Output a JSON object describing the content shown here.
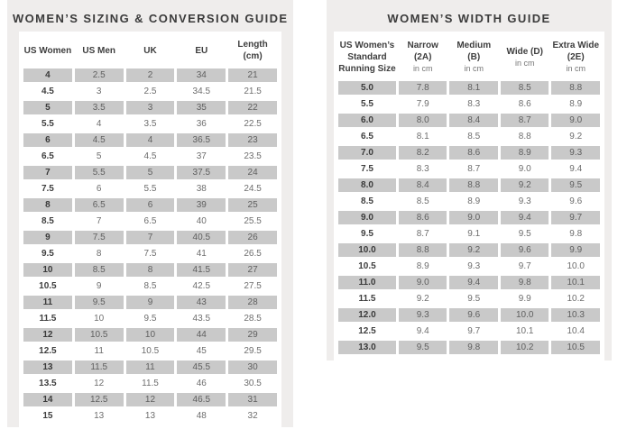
{
  "colors": {
    "page_bg": "#ffffff",
    "card_bg": "#efedec",
    "table_bg": "#ffffff",
    "shaded_cell": "#c9c9c9",
    "title_text": "#3b3b3b",
    "value_text": "#6e6e6e"
  },
  "sizing_guide": {
    "title": "WOMEN’S SIZING & CONVERSION GUIDE",
    "headers": [
      "US Women",
      "US Men",
      "UK",
      "EU",
      "Length (cm)"
    ],
    "rows": [
      [
        "4",
        "2.5",
        "2",
        "34",
        "21"
      ],
      [
        "4.5",
        "3",
        "2.5",
        "34.5",
        "21.5"
      ],
      [
        "5",
        "3.5",
        "3",
        "35",
        "22"
      ],
      [
        "5.5",
        "4",
        "3.5",
        "36",
        "22.5"
      ],
      [
        "6",
        "4.5",
        "4",
        "36.5",
        "23"
      ],
      [
        "6.5",
        "5",
        "4.5",
        "37",
        "23.5"
      ],
      [
        "7",
        "5.5",
        "5",
        "37.5",
        "24"
      ],
      [
        "7.5",
        "6",
        "5.5",
        "38",
        "24.5"
      ],
      [
        "8",
        "6.5",
        "6",
        "39",
        "25"
      ],
      [
        "8.5",
        "7",
        "6.5",
        "40",
        "25.5"
      ],
      [
        "9",
        "7.5",
        "7",
        "40.5",
        "26"
      ],
      [
        "9.5",
        "8",
        "7.5",
        "41",
        "26.5"
      ],
      [
        "10",
        "8.5",
        "8",
        "41.5",
        "27"
      ],
      [
        "10.5",
        "9",
        "8.5",
        "42.5",
        "27.5"
      ],
      [
        "11",
        "9.5",
        "9",
        "43",
        "28"
      ],
      [
        "11.5",
        "10",
        "9.5",
        "43.5",
        "28.5"
      ],
      [
        "12",
        "10.5",
        "10",
        "44",
        "29"
      ],
      [
        "12.5",
        "11",
        "10.5",
        "45",
        "29.5"
      ],
      [
        "13",
        "11.5",
        "11",
        "45.5",
        "30"
      ],
      [
        "13.5",
        "12",
        "11.5",
        "46",
        "30.5"
      ],
      [
        "14",
        "12.5",
        "12",
        "46.5",
        "31"
      ],
      [
        "15",
        "13",
        "13",
        "48",
        "32"
      ]
    ]
  },
  "width_guide": {
    "title": "WOMEN’S WIDTH GUIDE",
    "headers": [
      {
        "label": "US Women’s Standard Running Size",
        "sub": ""
      },
      {
        "label": "Narrow (2A)",
        "sub": "in cm"
      },
      {
        "label": "Medium (B)",
        "sub": "in cm"
      },
      {
        "label": "Wide (D)",
        "sub": "in cm"
      },
      {
        "label": "Extra Wide (2E)",
        "sub": "in cm"
      }
    ],
    "rows": [
      [
        "5.0",
        "7.8",
        "8.1",
        "8.5",
        "8.8"
      ],
      [
        "5.5",
        "7.9",
        "8.3",
        "8.6",
        "8.9"
      ],
      [
        "6.0",
        "8.0",
        "8.4",
        "8.7",
        "9.0"
      ],
      [
        "6.5",
        "8.1",
        "8.5",
        "8.8",
        "9.2"
      ],
      [
        "7.0",
        "8.2",
        "8.6",
        "8.9",
        "9.3"
      ],
      [
        "7.5",
        "8.3",
        "8.7",
        "9.0",
        "9.4"
      ],
      [
        "8.0",
        "8.4",
        "8.8",
        "9.2",
        "9.5"
      ],
      [
        "8.5",
        "8.5",
        "8.9",
        "9.3",
        "9.6"
      ],
      [
        "9.0",
        "8.6",
        "9.0",
        "9.4",
        "9.7"
      ],
      [
        "9.5",
        "8.7",
        "9.1",
        "9.5",
        "9.8"
      ],
      [
        "10.0",
        "8.8",
        "9.2",
        "9.6",
        "9.9"
      ],
      [
        "10.5",
        "8.9",
        "9.3",
        "9.7",
        "10.0"
      ],
      [
        "11.0",
        "9.0",
        "9.4",
        "9.8",
        "10.1"
      ],
      [
        "11.5",
        "9.2",
        "9.5",
        "9.9",
        "10.2"
      ],
      [
        "12.0",
        "9.3",
        "9.6",
        "10.0",
        "10.3"
      ],
      [
        "12.5",
        "9.4",
        "9.7",
        "10.1",
        "10.4"
      ],
      [
        "13.0",
        "9.5",
        "9.8",
        "10.2",
        "10.5"
      ]
    ]
  }
}
